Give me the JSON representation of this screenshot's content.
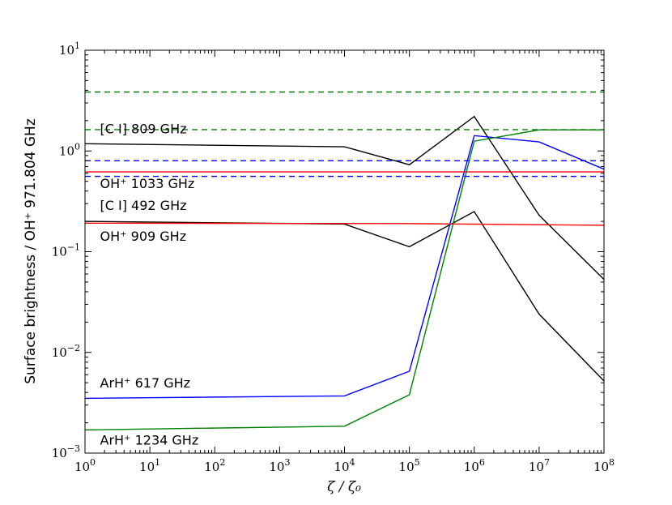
{
  "chart_data": {
    "type": "line",
    "xlabel": "ζ / ζ₀",
    "ylabel": "Surface brightness / OH⁺ 971.804 GHz",
    "xscale": "log",
    "yscale": "log",
    "xlim": [
      1,
      100000000
    ],
    "ylim": [
      0.001,
      10
    ],
    "grid": false,
    "legend": "none",
    "x_ticks": [
      {
        "value": 1,
        "base": "10",
        "exp": "0"
      },
      {
        "value": 10,
        "base": "10",
        "exp": "1"
      },
      {
        "value": 100,
        "base": "10",
        "exp": "2"
      },
      {
        "value": 1000,
        "base": "10",
        "exp": "3"
      },
      {
        "value": 10000,
        "base": "10",
        "exp": "4"
      },
      {
        "value": 100000,
        "base": "10",
        "exp": "5"
      },
      {
        "value": 1000000,
        "base": "10",
        "exp": "6"
      },
      {
        "value": 10000000,
        "base": "10",
        "exp": "7"
      },
      {
        "value": 100000000,
        "base": "10",
        "exp": "8"
      }
    ],
    "y_ticks": [
      {
        "value": 0.001,
        "base": "10",
        "exp": "−3"
      },
      {
        "value": 0.01,
        "base": "10",
        "exp": "−2"
      },
      {
        "value": 0.1,
        "base": "10",
        "exp": "−1"
      },
      {
        "value": 1,
        "base": "10",
        "exp": "0"
      },
      {
        "value": 10,
        "base": "10",
        "exp": "1"
      }
    ],
    "series": [
      {
        "color": "#000000",
        "style": "solid",
        "points": [
          [
            1,
            1.18
          ],
          [
            10000,
            1.1
          ],
          [
            100000,
            0.73
          ],
          [
            1000000,
            2.2
          ],
          [
            10000000,
            0.23
          ],
          [
            100000000,
            0.053
          ]
        ]
      },
      {
        "color": "#000000",
        "style": "solid",
        "points": [
          [
            1,
            0.2
          ],
          [
            10000,
            0.188
          ],
          [
            100000,
            0.112
          ],
          [
            1000000,
            0.25
          ],
          [
            10000000,
            0.024
          ],
          [
            100000000,
            0.0052
          ]
        ]
      },
      {
        "color": "#ff0000",
        "style": "solid",
        "points": [
          [
            1,
            0.62
          ],
          [
            100000000,
            0.62
          ]
        ]
      },
      {
        "color": "#ff0000",
        "style": "solid",
        "points": [
          [
            1,
            0.192
          ],
          [
            100000,
            0.19
          ],
          [
            100000000,
            0.183
          ]
        ]
      },
      {
        "color": "#0000ff",
        "style": "solid",
        "points": [
          [
            1,
            0.0035
          ],
          [
            10000,
            0.0037
          ],
          [
            100000,
            0.0065
          ],
          [
            1000000,
            1.42
          ],
          [
            10000000,
            1.23
          ],
          [
            100000000,
            0.66
          ]
        ]
      },
      {
        "color": "#008000",
        "style": "solid",
        "points": [
          [
            1,
            0.0017
          ],
          [
            10000,
            0.00185
          ],
          [
            100000,
            0.0038
          ],
          [
            1000000,
            1.25
          ],
          [
            10000000,
            1.62
          ],
          [
            100000000,
            1.62
          ]
        ]
      },
      {
        "color": "#008000",
        "style": "dashed",
        "points": [
          [
            1,
            3.85
          ],
          [
            100000000,
            3.85
          ]
        ]
      },
      {
        "color": "#008000",
        "style": "dashed",
        "points": [
          [
            1,
            1.63
          ],
          [
            100000000,
            1.63
          ]
        ]
      },
      {
        "color": "#0000ff",
        "style": "dashed",
        "points": [
          [
            1,
            0.8
          ],
          [
            100000000,
            0.8
          ]
        ]
      },
      {
        "color": "#0000ff",
        "style": "dashed",
        "points": [
          [
            1,
            0.56
          ],
          [
            100000000,
            0.56
          ]
        ]
      }
    ],
    "annotations": [
      {
        "text": "[C I] 809 GHz",
        "x": 1.7,
        "y": 1.5
      },
      {
        "text": "OH⁺ 1033 GHz",
        "x": 1.7,
        "y": 0.43
      },
      {
        "text": "[C I] 492 GHz",
        "x": 1.7,
        "y": 0.26
      },
      {
        "text": "OH⁺ 909 GHz",
        "x": 1.7,
        "y": 0.128
      },
      {
        "text": "ArH⁺ 617 GHz",
        "x": 1.7,
        "y": 0.0045
      },
      {
        "text": "ArH⁺ 1234 GHz",
        "x": 1.7,
        "y": 0.00122
      }
    ]
  }
}
